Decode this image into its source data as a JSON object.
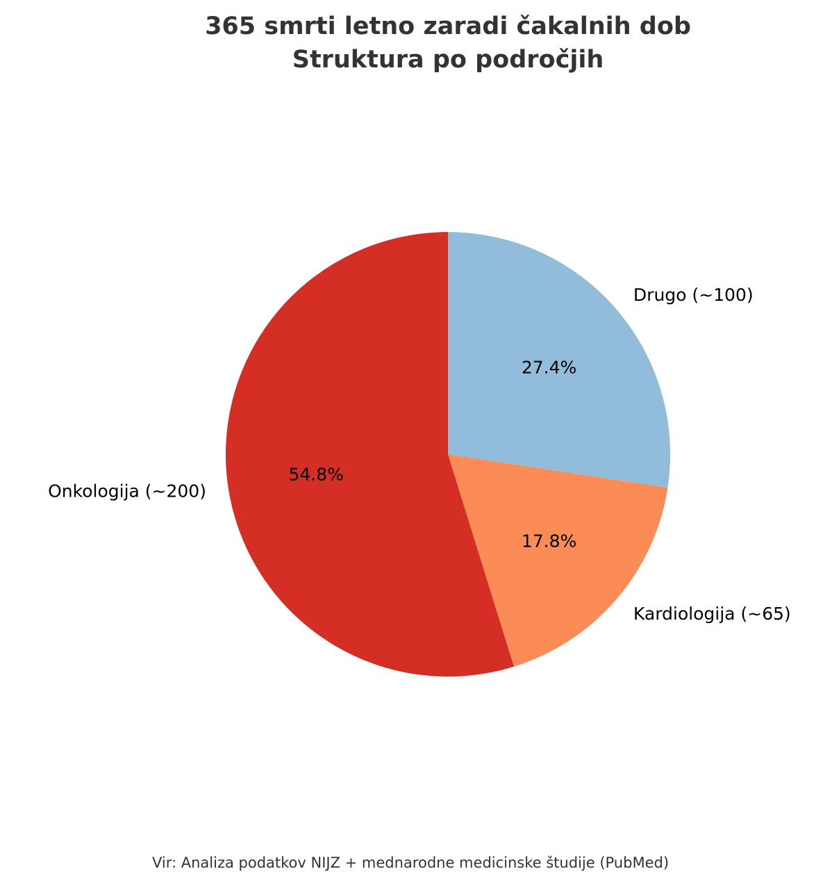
{
  "chart_data": {
    "type": "pie",
    "title_lines": [
      "365 smrti letno zaradi čakalnih dob",
      "Struktura po področjih"
    ],
    "slices": [
      {
        "label": "Drugo (~100)",
        "value": 100,
        "percent_label": "27.4%",
        "color": "#92bdda"
      },
      {
        "label": "Kardiologija (~65)",
        "value": 65,
        "percent_label": "17.8%",
        "color": "#fb8c58"
      },
      {
        "label": "Onkologija (~200)",
        "value": 200,
        "percent_label": "54.8%",
        "color": "#d52f25"
      }
    ],
    "start_angle_deg": 90,
    "direction": "clockwise",
    "source_note": "Vir: Analiza podatkov NIJZ + mednarodne medicinske študije (PubMed)"
  }
}
